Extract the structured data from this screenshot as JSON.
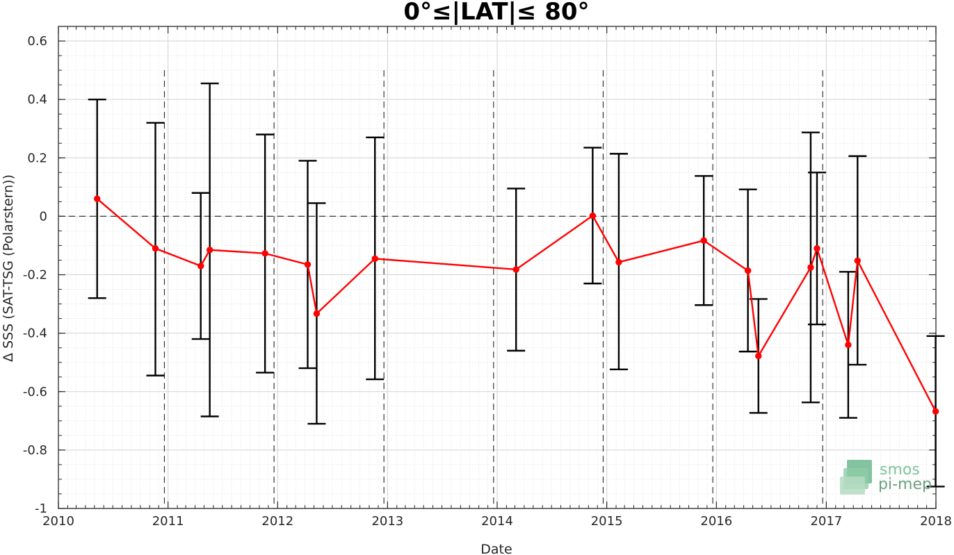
{
  "chart_data": {
    "type": "line",
    "title": "0°≤|LAT|≤ 80°",
    "xlabel": "Date",
    "ylabel": "Δ SSS (SAT-TSG (Polarstern))",
    "xlim": [
      "2010-01-01",
      "2018-01-01"
    ],
    "ylim": [
      -1,
      0.65
    ],
    "x_ticks": [
      "2010",
      "2011",
      "2012",
      "2013",
      "2014",
      "2015",
      "2016",
      "2017",
      "2018"
    ],
    "y_ticks": [
      "-1",
      "-0.8",
      "-0.6",
      "-0.4",
      "-0.2",
      "0",
      "0.2",
      "0.4",
      "0.6"
    ],
    "y_tick_values": [
      -1,
      -0.8,
      -0.6,
      -0.4,
      -0.2,
      0,
      0.2,
      0.4,
      0.6
    ],
    "grid": true,
    "minor_grid": true,
    "vertical_dashed_lines": [
      "2010-12-20",
      "2011-12-20",
      "2012-12-20",
      "2013-12-20",
      "2014-12-20",
      "2015-12-20",
      "2016-12-20"
    ],
    "horizontal_dashed_line": 0,
    "series": [
      {
        "color": "#ff0000",
        "points": [
          {
            "x": "2010-05-10",
            "y": 0.06,
            "err_low": -0.28,
            "err_high": 0.4
          },
          {
            "x": "2010-11-20",
            "y": -0.11,
            "err_low": -0.545,
            "err_high": 0.32
          },
          {
            "x": "2011-04-20",
            "y": -0.17,
            "err_low": -0.42,
            "err_high": 0.08
          },
          {
            "x": "2011-05-20",
            "y": -0.115,
            "err_low": -0.685,
            "err_high": 0.455
          },
          {
            "x": "2011-11-20",
            "y": -0.127,
            "err_low": -0.535,
            "err_high": 0.28
          },
          {
            "x": "2012-04-10",
            "y": -0.165,
            "err_low": -0.52,
            "err_high": 0.19
          },
          {
            "x": "2012-05-10",
            "y": -0.333,
            "err_low": -0.71,
            "err_high": 0.045
          },
          {
            "x": "2012-11-20",
            "y": -0.145,
            "err_low": -0.558,
            "err_high": 0.27
          },
          {
            "x": "2014-03-05",
            "y": -0.182,
            "err_low": -0.46,
            "err_high": 0.095
          },
          {
            "x": "2014-11-15",
            "y": 0.002,
            "err_low": -0.23,
            "err_high": 0.235
          },
          {
            "x": "2015-02-10",
            "y": -0.157,
            "err_low": -0.524,
            "err_high": 0.214
          },
          {
            "x": "2015-11-20",
            "y": -0.083,
            "err_low": -0.304,
            "err_high": 0.138
          },
          {
            "x": "2016-04-15",
            "y": -0.186,
            "err_low": -0.463,
            "err_high": 0.092
          },
          {
            "x": "2016-05-20",
            "y": -0.478,
            "err_low": -0.673,
            "err_high": -0.283
          },
          {
            "x": "2016-11-10",
            "y": -0.175,
            "err_low": -0.637,
            "err_high": 0.287
          },
          {
            "x": "2016-12-01",
            "y": -0.11,
            "err_low": -0.37,
            "err_high": 0.15
          },
          {
            "x": "2017-03-15",
            "y": -0.44,
            "err_low": -0.69,
            "err_high": -0.19
          },
          {
            "x": "2017-04-15",
            "y": -0.152,
            "err_low": -0.508,
            "err_high": 0.206
          },
          {
            "x": "2017-12-31",
            "y": -0.668,
            "err_low": -0.925,
            "err_high": -0.41
          }
        ]
      }
    ]
  },
  "logo": {
    "line1": "smos",
    "line2": "pi-mep",
    "color": "#7cc39b"
  }
}
